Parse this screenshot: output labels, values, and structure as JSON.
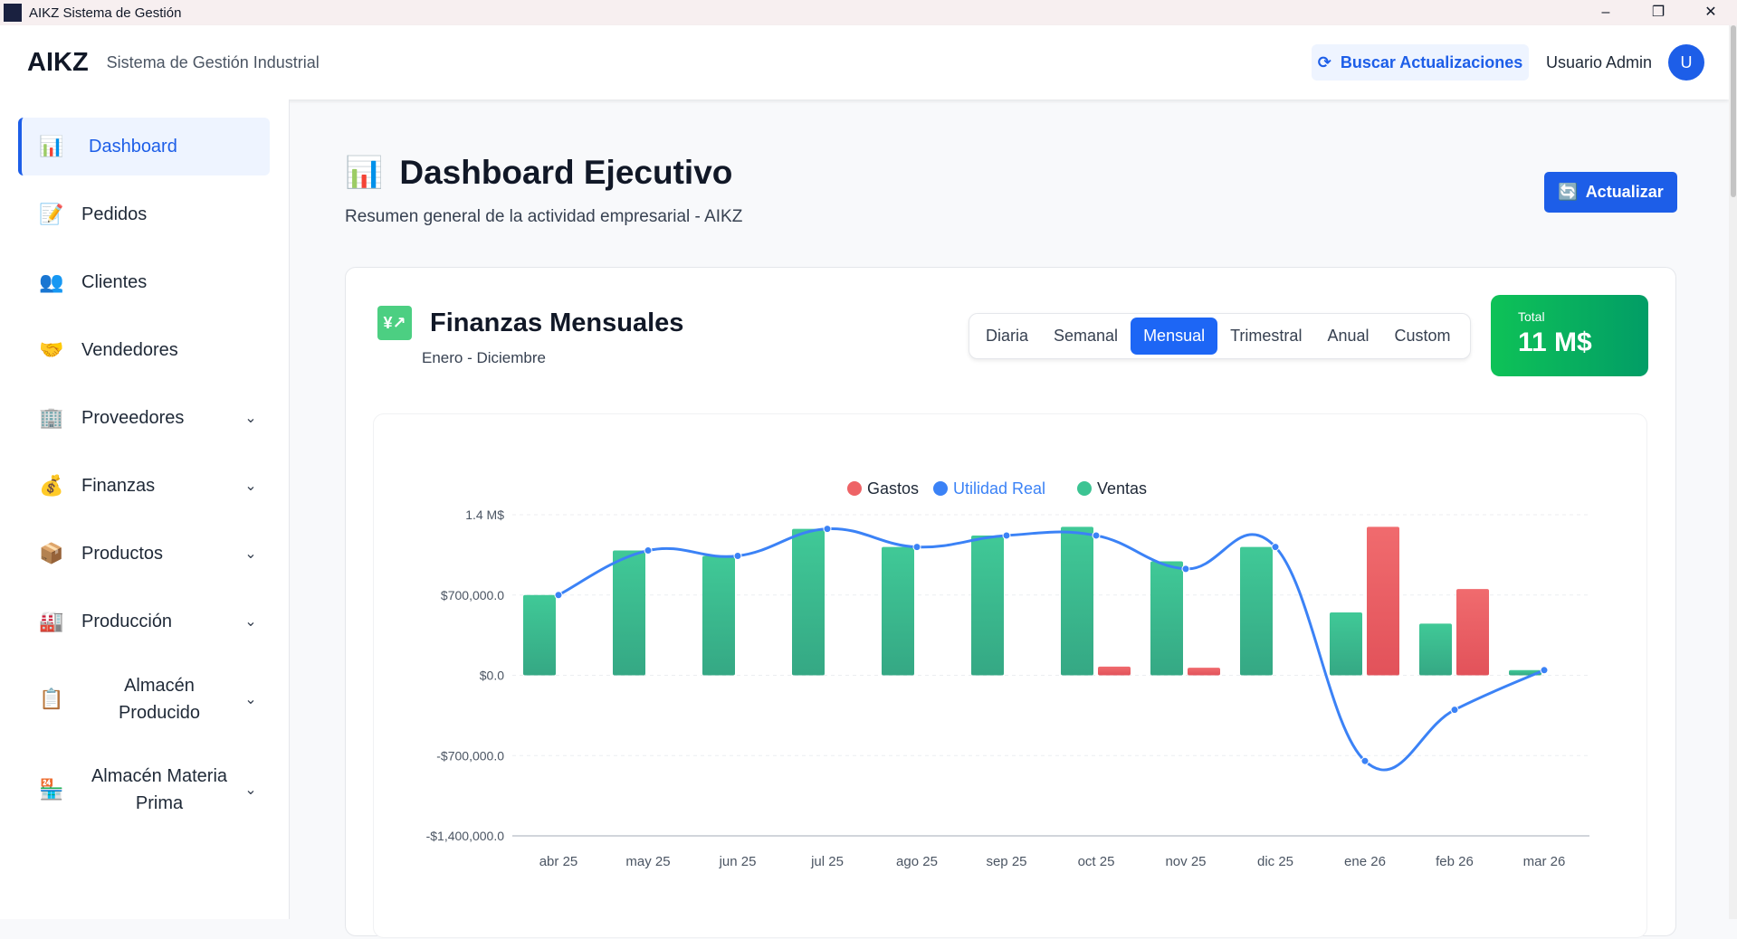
{
  "window": {
    "title": "AIKZ Sistema de Gestión",
    "controls": [
      "–",
      "❐",
      "✕"
    ]
  },
  "header": {
    "logo": "AIKZ",
    "subtitle": "Sistema de Gestión Industrial",
    "update_button": "Buscar Actualizaciones",
    "user_name": "Usuario Admin",
    "avatar_initial": "U"
  },
  "sidebar": {
    "items": [
      {
        "label": "Dashboard",
        "icon": "📊",
        "active": true
      },
      {
        "label": "Pedidos",
        "icon": "📝"
      },
      {
        "label": "Clientes",
        "icon": "👥"
      },
      {
        "label": "Vendedores",
        "icon": "🤝"
      },
      {
        "label": "Proveedores",
        "icon": "🏢",
        "expandable": true
      },
      {
        "label": "Finanzas",
        "icon": "💰",
        "expandable": true
      },
      {
        "label": "Productos",
        "icon": "📦",
        "expandable": true
      },
      {
        "label": "Producción",
        "icon": "🏭",
        "expandable": true
      },
      {
        "label": "Almacén Producido",
        "icon": "📋",
        "expandable": true
      },
      {
        "label": "Almacén Materia Prima",
        "icon": "🏪",
        "expandable": true
      }
    ]
  },
  "page": {
    "icon": "📊",
    "title": "Dashboard Ejecutivo",
    "subtitle": "Resumen general de la actividad empresarial - AIKZ",
    "refresh_button": "Actualizar"
  },
  "card": {
    "icon": "💹",
    "title": "Finanzas Mensuales",
    "subtitle": "Enero - Diciembre",
    "tabs": [
      {
        "label": "Diaria"
      },
      {
        "label": "Semanal"
      },
      {
        "label": "Mensual",
        "active": true
      },
      {
        "label": "Trimestral"
      },
      {
        "label": "Anual"
      },
      {
        "label": "Custom"
      }
    ],
    "total_label": "Total",
    "total_value": "11 M$"
  },
  "colors": {
    "accent": "#1d5ee8",
    "ventas": "#3cc493",
    "gastos": "#ee6366",
    "utilidad": "#3b82f6"
  },
  "chart_data": {
    "type": "bar",
    "categories": [
      "abr 25",
      "may 25",
      "jun 25",
      "jul 25",
      "ago 25",
      "sep 25",
      "oct 25",
      "nov 25",
      "dic 25",
      "ene 26",
      "feb 26",
      "mar 26"
    ],
    "series": [
      {
        "name": "Gastos",
        "type": "bar",
        "color": "#ee6366",
        "values": [
          0,
          0,
          0,
          0,
          0,
          0,
          76000,
          66000,
          0,
          1295000,
          752000,
          0
        ]
      },
      {
        "name": "Utilidad Real",
        "type": "line",
        "color": "#3b82f6",
        "values": [
          700000,
          1088000,
          1041000,
          1277000,
          1119000,
          1219000,
          1219000,
          928000,
          1119000,
          -747000,
          -301000,
          45000
        ]
      },
      {
        "name": "Ventas",
        "type": "bar",
        "color": "#3cc493",
        "values": [
          700000,
          1088000,
          1041000,
          1277000,
          1119000,
          1219000,
          1295000,
          994000,
          1119000,
          548000,
          451000,
          45000
        ]
      }
    ],
    "yticks": [
      "1.4 M$",
      "$700,000.0",
      "$0.0",
      "-$700,000.0",
      "-$1,400,000.0"
    ],
    "ytick_values": [
      1400000,
      700000,
      0,
      -700000,
      -1400000
    ],
    "ylim": [
      -1400000,
      1400000
    ],
    "legend": "top-center",
    "grid": true
  }
}
